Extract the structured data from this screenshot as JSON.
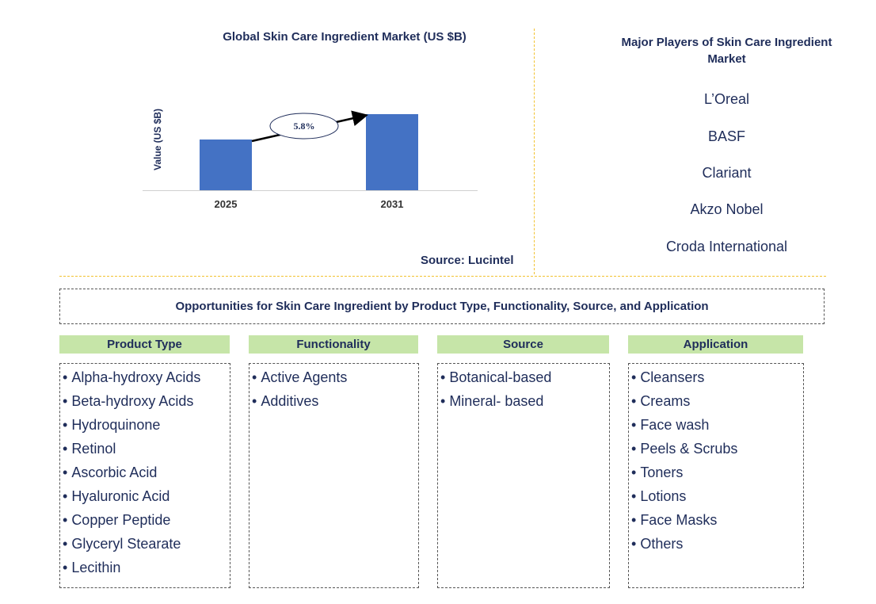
{
  "chart_data": {
    "type": "bar",
    "title": "Global Skin Care Ingredient Market (US $B)",
    "ylabel": "Value (US $B)",
    "categories": [
      "2025",
      "2031"
    ],
    "values": [
      0.64,
      0.96
    ],
    "ylim": [
      0,
      1
    ],
    "annotation": "5.8%",
    "color": "#4472c4"
  },
  "source": "Source: Lucintel",
  "players": {
    "title": "Major Players of Skin Care Ingredient Market",
    "items": [
      "L’Oreal",
      "BASF",
      "Clariant",
      "Akzo Nobel",
      "Croda International"
    ]
  },
  "opportunities": {
    "title": "Opportunities for Skin Care Ingredient by Product Type, Functionality, Source, and Application",
    "columns": [
      {
        "heading": "Product Type",
        "items": [
          "Alpha-hydroxy Acids",
          "Beta-hydroxy Acids",
          "Hydroquinone",
          "Retinol",
          "Ascorbic Acid",
          "Hyaluronic Acid",
          "Copper Peptide",
          "Glyceryl Stearate",
          "Lecithin"
        ]
      },
      {
        "heading": "Functionality",
        "items": [
          "Active Agents",
          "Additives"
        ]
      },
      {
        "heading": "Source",
        "items": [
          "Botanical-based",
          "Mineral- based"
        ]
      },
      {
        "heading": "Application",
        "items": [
          "Cleansers",
          "Creams",
          "Face wash",
          "Peels & Scrubs",
          "Toners",
          "Lotions",
          "Face Masks",
          "Others"
        ]
      }
    ]
  }
}
